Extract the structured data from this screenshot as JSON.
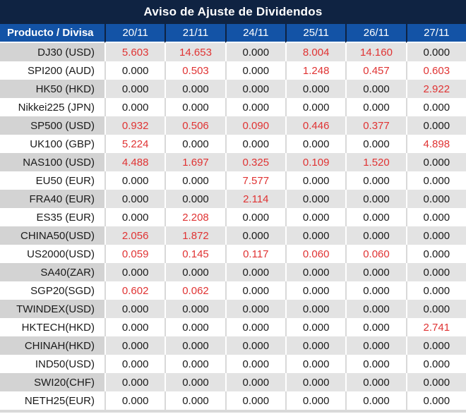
{
  "title": "Aviso de Ajuste de Dividendos",
  "colors": {
    "title_bg": "#0f2342",
    "header_bg": "#1353a6",
    "header_divider": "#0f2342",
    "stripe_label_bg": "#d3d3d3",
    "stripe_cell_bg": "#e3e3e3",
    "zero_value_text": "#1a1a1a",
    "adjustment_value_text": "#e03333"
  },
  "chart_data": {
    "type": "table",
    "title": "Aviso de Ajuste de Dividendos",
    "label_header": "Producto / Divisa",
    "columns": [
      "20/11",
      "21/11",
      "24/11",
      "25/11",
      "26/11",
      "27/11"
    ],
    "rows": [
      {
        "label": "DJ30 (USD)",
        "values": [
          "5.603",
          "14.653",
          "0.000",
          "8.004",
          "14.160",
          "0.000"
        ]
      },
      {
        "label": "SPI200 (AUD)",
        "values": [
          "0.000",
          "0.503",
          "0.000",
          "1.248",
          "0.457",
          "0.603"
        ]
      },
      {
        "label": "HK50 (HKD)",
        "values": [
          "0.000",
          "0.000",
          "0.000",
          "0.000",
          "0.000",
          "2.922"
        ]
      },
      {
        "label": "Nikkei225 (JPN)",
        "values": [
          "0.000",
          "0.000",
          "0.000",
          "0.000",
          "0.000",
          "0.000"
        ]
      },
      {
        "label": "SP500 (USD)",
        "values": [
          "0.932",
          "0.506",
          "0.090",
          "0.446",
          "0.377",
          "0.000"
        ]
      },
      {
        "label": "UK100 (GBP)",
        "values": [
          "5.224",
          "0.000",
          "0.000",
          "0.000",
          "0.000",
          "4.898"
        ]
      },
      {
        "label": "NAS100 (USD)",
        "values": [
          "4.488",
          "1.697",
          "0.325",
          "0.109",
          "1.520",
          "0.000"
        ]
      },
      {
        "label": "EU50 (EUR)",
        "values": [
          "0.000",
          "0.000",
          "7.577",
          "0.000",
          "0.000",
          "0.000"
        ]
      },
      {
        "label": "FRA40 (EUR)",
        "values": [
          "0.000",
          "0.000",
          "2.114",
          "0.000",
          "0.000",
          "0.000"
        ]
      },
      {
        "label": "ES35 (EUR)",
        "values": [
          "0.000",
          "2.208",
          "0.000",
          "0.000",
          "0.000",
          "0.000"
        ]
      },
      {
        "label": "CHINA50(USD)",
        "values": [
          "2.056",
          "1.872",
          "0.000",
          "0.000",
          "0.000",
          "0.000"
        ]
      },
      {
        "label": "US2000(USD)",
        "values": [
          "0.059",
          "0.145",
          "0.117",
          "0.060",
          "0.060",
          "0.000"
        ]
      },
      {
        "label": "SA40(ZAR)",
        "values": [
          "0.000",
          "0.000",
          "0.000",
          "0.000",
          "0.000",
          "0.000"
        ]
      },
      {
        "label": "SGP20(SGD)",
        "values": [
          "0.602",
          "0.062",
          "0.000",
          "0.000",
          "0.000",
          "0.000"
        ]
      },
      {
        "label": "TWINDEX(USD)",
        "values": [
          "0.000",
          "0.000",
          "0.000",
          "0.000",
          "0.000",
          "0.000"
        ]
      },
      {
        "label": "HKTECH(HKD)",
        "values": [
          "0.000",
          "0.000",
          "0.000",
          "0.000",
          "0.000",
          "2.741"
        ]
      },
      {
        "label": "CHINAH(HKD)",
        "values": [
          "0.000",
          "0.000",
          "0.000",
          "0.000",
          "0.000",
          "0.000"
        ]
      },
      {
        "label": "IND50(USD)",
        "values": [
          "0.000",
          "0.000",
          "0.000",
          "0.000",
          "0.000",
          "0.000"
        ]
      },
      {
        "label": "SWI20(CHF)",
        "values": [
          "0.000",
          "0.000",
          "0.000",
          "0.000",
          "0.000",
          "0.000"
        ]
      },
      {
        "label": "NETH25(EUR)",
        "values": [
          "0.000",
          "0.000",
          "0.000",
          "0.000",
          "0.000",
          "0.000"
        ]
      }
    ]
  }
}
